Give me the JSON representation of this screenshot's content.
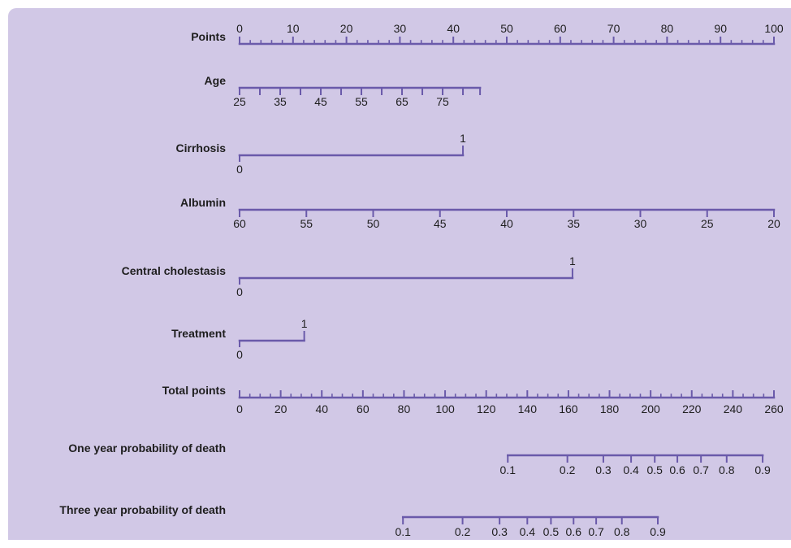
{
  "chart_data": {
    "type": "nomogram",
    "title": "",
    "colors": {
      "background": "#d1c8e6",
      "line": "#6a5aaa",
      "text": "#1e1e1e"
    },
    "rows": [
      {
        "name": "Points",
        "scale": "linear",
        "tick_labels_above": true,
        "ticks": [
          0,
          10,
          20,
          30,
          40,
          50,
          60,
          70,
          80,
          90,
          100
        ],
        "labeled_ticks": [
          0,
          10,
          20,
          30,
          40,
          50,
          60,
          70,
          80,
          90,
          100
        ],
        "tick_labels": [
          "0",
          "10",
          "20",
          "30",
          "40",
          "50",
          "60",
          "70",
          "80",
          "90",
          "100"
        ],
        "minor_ticks": [
          2,
          4,
          6,
          8,
          12,
          14,
          16,
          18,
          22,
          24,
          26,
          28,
          32,
          34,
          36,
          38,
          42,
          44,
          46,
          48,
          52,
          54,
          56,
          58,
          62,
          64,
          66,
          68,
          72,
          74,
          76,
          78,
          82,
          84,
          86,
          88,
          92,
          94,
          96,
          98
        ],
        "points_range": [
          0,
          100
        ]
      },
      {
        "name": "Age",
        "values": [
          25,
          30,
          35,
          40,
          45,
          50,
          55,
          60,
          65,
          70,
          75,
          80
        ],
        "points": [
          0,
          3.8,
          7.6,
          11.4,
          15.2,
          19.0,
          22.8,
          26.6,
          30.4,
          34.2,
          38.0,
          41.8
        ],
        "line_points_range": [
          0,
          45
        ],
        "labeled_values": [
          25,
          35,
          45,
          55,
          65,
          75
        ],
        "tick_labels": [
          "25",
          "35",
          "45",
          "55",
          "65",
          "75"
        ],
        "tick_labels_above": false
      },
      {
        "name": "Cirrhosis",
        "values": [
          0,
          1
        ],
        "points": [
          0,
          41.8
        ],
        "tick_labels": [
          "0",
          "1"
        ],
        "label_positions": [
          "below",
          "above"
        ]
      },
      {
        "name": "Albumin",
        "values": [
          60,
          55,
          50,
          45,
          40,
          35,
          30,
          25,
          20
        ],
        "points": [
          0,
          12.5,
          25,
          37.5,
          50,
          62.5,
          75,
          87.5,
          100
        ],
        "tick_labels": [
          "60",
          "55",
          "50",
          "45",
          "40",
          "35",
          "30",
          "25",
          "20"
        ],
        "tick_labels_above": false
      },
      {
        "name": "Central cholestasis",
        "values": [
          0,
          1
        ],
        "points": [
          0,
          62.3
        ],
        "tick_labels": [
          "0",
          "1"
        ],
        "label_positions": [
          "below",
          "above"
        ]
      },
      {
        "name": "Treatment",
        "values": [
          0,
          1
        ],
        "points": [
          0,
          12.1
        ],
        "tick_labels": [
          "0",
          "1"
        ],
        "label_positions": [
          "below",
          "above"
        ]
      },
      {
        "name": "Total points",
        "scale": "linear",
        "tick_labels_above": false,
        "ticks": [
          0,
          20,
          40,
          60,
          80,
          100,
          120,
          140,
          160,
          180,
          200,
          220,
          240,
          260
        ],
        "labeled_ticks": [
          0,
          20,
          40,
          60,
          80,
          100,
          120,
          140,
          160,
          180,
          200,
          220,
          240,
          260
        ],
        "tick_labels": [
          "0",
          "20",
          "40",
          "60",
          "80",
          "100",
          "120",
          "140",
          "160",
          "180",
          "200",
          "220",
          "240",
          "260"
        ],
        "minor_ticks": [
          5,
          10,
          15,
          25,
          30,
          35,
          45,
          50,
          55,
          65,
          70,
          75,
          85,
          90,
          95,
          105,
          110,
          115,
          125,
          130,
          135,
          145,
          150,
          155,
          165,
          170,
          175,
          185,
          190,
          195,
          205,
          210,
          215,
          225,
          230,
          235,
          245,
          250,
          255
        ],
        "total_range": [
          0,
          260
        ]
      },
      {
        "name": "One year probability of death",
        "values": [
          0.1,
          0.2,
          0.3,
          0.4,
          0.5,
          0.6,
          0.7,
          0.8,
          0.9
        ],
        "total_points": [
          130.5,
          159.5,
          177,
          190.5,
          202,
          213,
          224.5,
          237,
          254.5
        ],
        "tick_labels": [
          "0.1",
          "0.2",
          "0.3",
          "0.4",
          "0.5",
          "0.6",
          "0.7",
          "0.8",
          "0.9"
        ],
        "tick_labels_above": false
      },
      {
        "name": "Three year probability of death",
        "values": [
          0.1,
          0.2,
          0.3,
          0.4,
          0.5,
          0.6,
          0.7,
          0.8,
          0.9
        ],
        "total_points": [
          79.5,
          108.5,
          126.5,
          140,
          151.5,
          162.5,
          173.5,
          186,
          203.5
        ],
        "tick_labels": [
          "0.1",
          "0.2",
          "0.3",
          "0.4",
          "0.5",
          "0.6",
          "0.7",
          "0.8",
          "0.9"
        ],
        "tick_labels_above": false
      }
    ]
  }
}
